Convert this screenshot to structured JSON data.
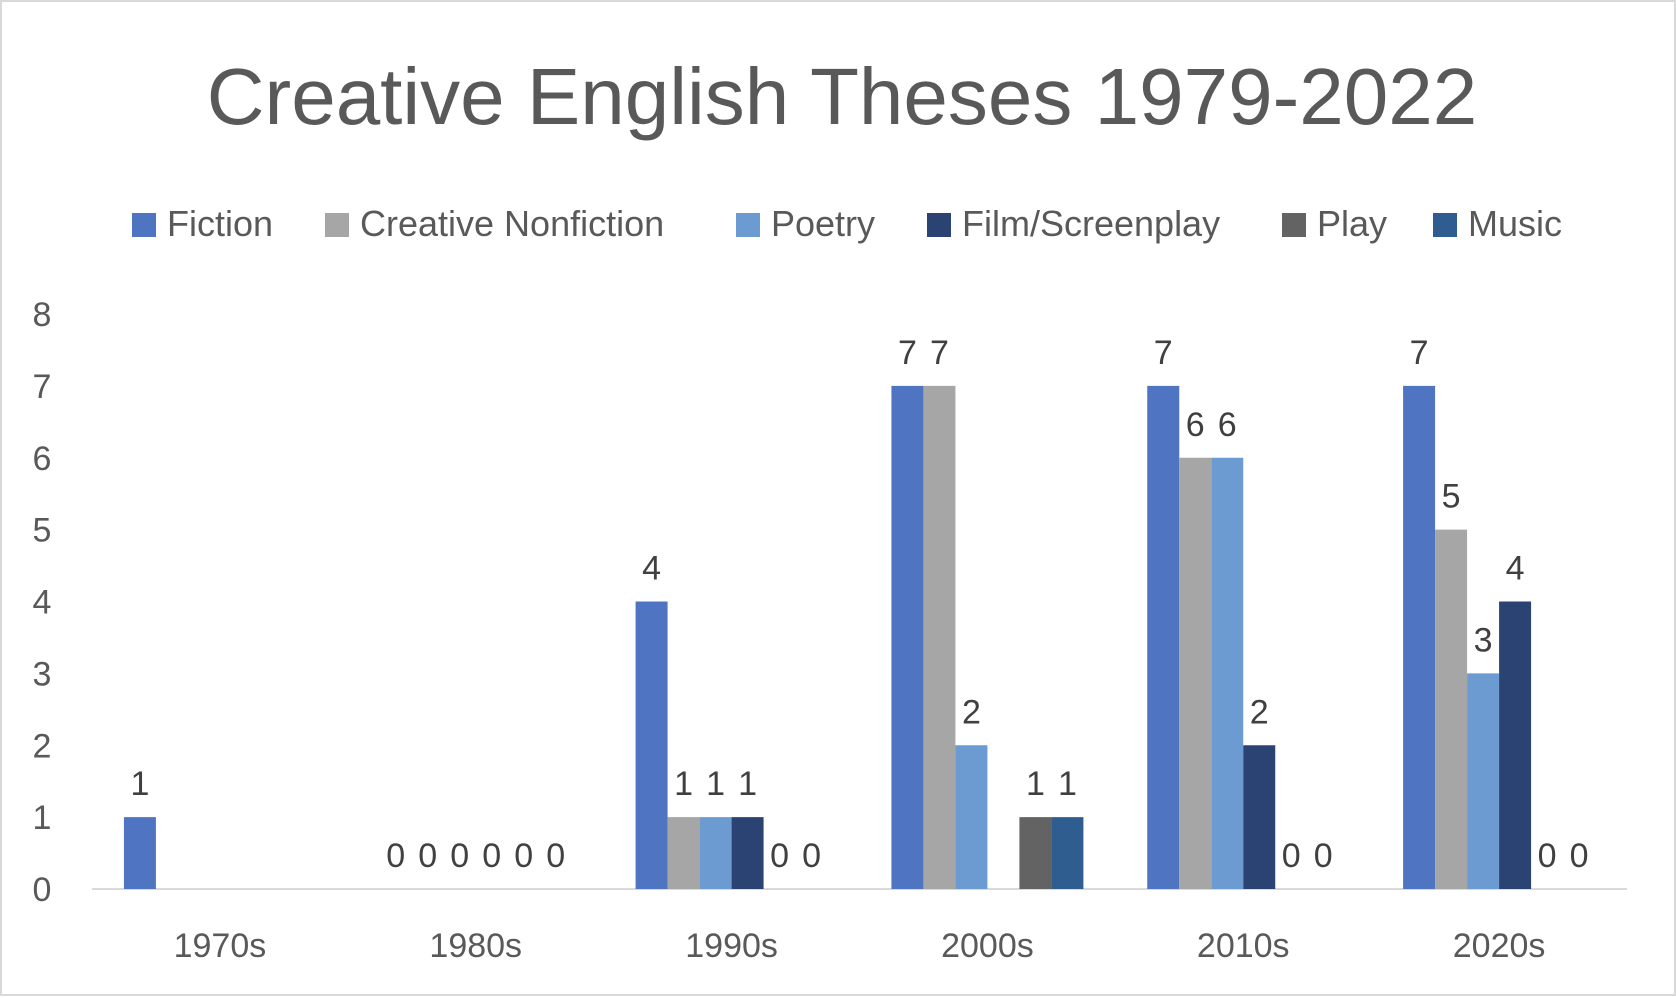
{
  "chart_data": {
    "type": "bar",
    "title": "Creative English Theses 1979-2022",
    "categories": [
      "1970s",
      "1980s",
      "1990s",
      "2000s",
      "2010s",
      "2020s"
    ],
    "series": [
      {
        "name": "Fiction",
        "color": "#4f74c1",
        "values": [
          1,
          0,
          4,
          7,
          7,
          7
        ],
        "labels": [
          "1",
          "0",
          "4",
          "7",
          "7",
          "7"
        ]
      },
      {
        "name": "Creative Nonfiction",
        "color": "#a6a6a6",
        "values": [
          null,
          0,
          1,
          7,
          6,
          5
        ],
        "labels": [
          "",
          "0",
          "1",
          "7",
          "6",
          "5"
        ]
      },
      {
        "name": "Poetry",
        "color": "#6b9bd1",
        "values": [
          null,
          0,
          1,
          2,
          6,
          3
        ],
        "labels": [
          "",
          "0",
          "1",
          "2",
          "6",
          "3"
        ]
      },
      {
        "name": "Film/Screenplay",
        "color": "#2b4372",
        "values": [
          null,
          0,
          1,
          null,
          2,
          4
        ],
        "labels": [
          "",
          "0",
          "1",
          "",
          "2",
          "4"
        ]
      },
      {
        "name": "Play",
        "color": "#636363",
        "values": [
          null,
          0,
          0,
          1,
          0,
          0
        ],
        "labels": [
          "",
          "0",
          "0",
          "1",
          "0",
          "0"
        ]
      },
      {
        "name": "Music",
        "color": "#2f5d8f",
        "values": [
          null,
          0,
          0,
          1,
          0,
          0
        ],
        "labels": [
          "",
          "0",
          "0",
          "1",
          "0",
          "0"
        ]
      }
    ],
    "yticks": [
      "0",
      "1",
      "2",
      "3",
      "4",
      "5",
      "6",
      "7",
      "8"
    ],
    "ylim": [
      0,
      8
    ],
    "xlabel": "",
    "ylabel": "",
    "grid": false,
    "legend_position": "top"
  }
}
